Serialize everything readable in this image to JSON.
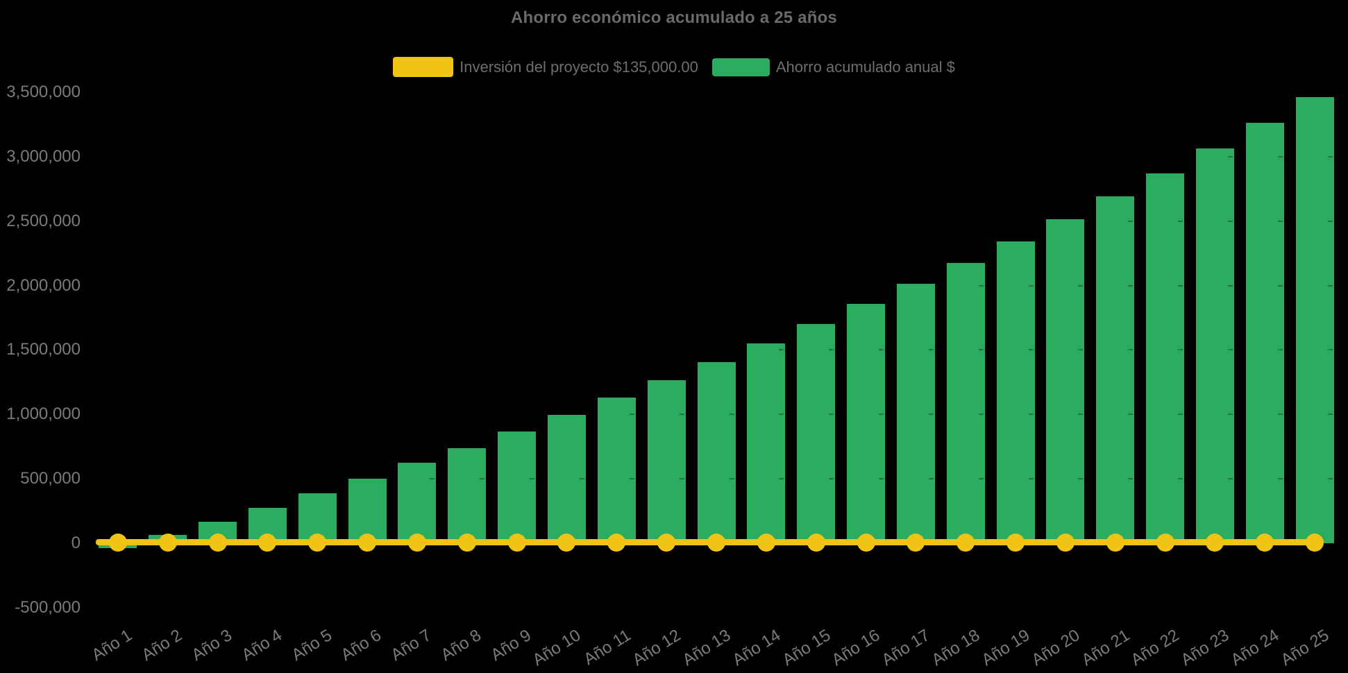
{
  "title": "Ahorro económico acumulado a 25 años",
  "colors": {
    "background": "#000000",
    "investment_yellow": "#EFC414",
    "savings_green": "#2BAC60",
    "title_text": "#6A6A6A",
    "legend_text": "#6E6E6E",
    "axis_text": "#7B7B7B"
  },
  "legend": {
    "items": [
      {
        "key": "investment",
        "label": "Inversión del proyecto $135,000.00",
        "color": "#EFC414"
      },
      {
        "key": "savings",
        "label": "Ahorro acumulado anual $",
        "color": "#2BAC60"
      }
    ]
  },
  "chart_data": {
    "type": "bar",
    "title": "Ahorro económico acumulado a 25 años",
    "categories": [
      "Año 1",
      "Año 2",
      "Año 3",
      "Año 4",
      "Año 5",
      "Año 6",
      "Año 7",
      "Año 8",
      "Año 9",
      "Año 10",
      "Año 11",
      "Año 12",
      "Año 13",
      "Año 14",
      "Año 15",
      "Año 16",
      "Año 17",
      "Año 18",
      "Año 19",
      "Año 20",
      "Año 21",
      "Año 22",
      "Año 23",
      "Año 24",
      "Año 25"
    ],
    "series": [
      {
        "name": "Ahorro acumulado anual $",
        "type": "bar",
        "color": "#2BAC60",
        "values": [
          -40000,
          65000,
          165000,
          275000,
          390000,
          500000,
          625000,
          740000,
          865000,
          995000,
          1130000,
          1265000,
          1405000,
          1550000,
          1700000,
          1855000,
          2015000,
          2175000,
          2340000,
          2515000,
          2690000,
          2870000,
          3065000,
          3265000,
          3460000
        ]
      },
      {
        "name": "Inversión del proyecto $135,000.00",
        "type": "line",
        "color": "#EFC414",
        "constant_value": 135000,
        "plotted_at_value": 0,
        "values": [
          135000,
          135000,
          135000,
          135000,
          135000,
          135000,
          135000,
          135000,
          135000,
          135000,
          135000,
          135000,
          135000,
          135000,
          135000,
          135000,
          135000,
          135000,
          135000,
          135000,
          135000,
          135000,
          135000,
          135000,
          135000
        ]
      }
    ],
    "ylim": [
      -500000,
      3500000
    ],
    "ytick_step": 500000,
    "yticks": [
      {
        "value": -500000,
        "label": "-500,000"
      },
      {
        "value": 0,
        "label": "0"
      },
      {
        "value": 500000,
        "label": "500,000"
      },
      {
        "value": 1000000,
        "label": "1,000,000"
      },
      {
        "value": 1500000,
        "label": "1,500,000"
      },
      {
        "value": 2000000,
        "label": "2,000,000"
      },
      {
        "value": 2500000,
        "label": "2,500,000"
      },
      {
        "value": 3000000,
        "label": "3,000,000"
      },
      {
        "value": 3500000,
        "label": "3,500,000"
      }
    ],
    "xlabel": "",
    "ylabel": "",
    "grid": false,
    "legend_position": "top",
    "background": "black"
  }
}
